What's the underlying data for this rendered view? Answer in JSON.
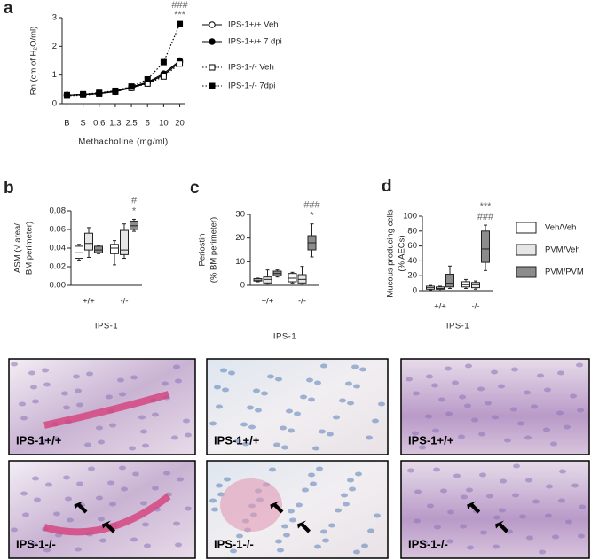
{
  "chart_data": [
    {
      "type": "line",
      "panel": "a",
      "y_label": "Rn (cm of H₂O/ml)",
      "x_label": "Methacholine (mg/ml)",
      "categories": [
        "B",
        "S",
        "0.6",
        "1.3",
        "2.5",
        "5",
        "10",
        "20"
      ],
      "ylim": [
        0,
        3
      ],
      "yticks": [
        0,
        1,
        2,
        3
      ],
      "annotations": [
        "###",
        "***"
      ],
      "series": [
        {
          "name": "IPS-1+/+ Veh",
          "color": "#000000",
          "marker": "open-circle",
          "dash": "solid",
          "values": [
            0.3,
            0.32,
            0.35,
            0.42,
            0.55,
            0.72,
            1.0,
            1.45
          ]
        },
        {
          "name": "IPS-1+/+ 7 dpi",
          "color": "#000000",
          "marker": "filled-circle",
          "dash": "solid",
          "values": [
            0.3,
            0.32,
            0.36,
            0.44,
            0.58,
            0.75,
            1.05,
            1.5
          ]
        },
        {
          "name": "IPS-1-/- Veh",
          "color": "#000000",
          "marker": "open-square",
          "dash": "dotted",
          "values": [
            0.28,
            0.3,
            0.35,
            0.42,
            0.55,
            0.7,
            0.95,
            1.4
          ]
        },
        {
          "name": "IPS-1-/- 7dpi",
          "color": "#000000",
          "marker": "filled-square",
          "dash": "dotted",
          "values": [
            0.3,
            0.33,
            0.38,
            0.45,
            0.6,
            0.85,
            1.45,
            2.78
          ]
        }
      ]
    },
    {
      "type": "box",
      "panel": "b",
      "y_label": [
        "ASM (√ area/",
        "BM perimeter)"
      ],
      "x_label": "IPS-1",
      "categories": [
        "+/+",
        "-/-"
      ],
      "ylim": [
        0,
        0.08
      ],
      "yticks": [
        {
          "value": 0,
          "label": "0.00"
        },
        {
          "value": 0.02,
          "label": "0.02"
        },
        {
          "value": 0.04,
          "label": "0.04"
        },
        {
          "value": 0.06,
          "label": "0.06"
        },
        {
          "value": 0.08,
          "label": "0.08"
        }
      ],
      "annotations": [
        "#",
        "*"
      ],
      "series": [
        {
          "color": "#ffffff",
          "min": [
            0.027,
            0.022
          ],
          "q1": [
            0.029,
            0.034
          ],
          "median": [
            0.035,
            0.04
          ],
          "q3": [
            0.042,
            0.044
          ],
          "max": [
            0.044,
            0.048
          ]
        },
        {
          "color": "#e6e6e6",
          "min": [
            0.03,
            0.029
          ],
          "q1": [
            0.038,
            0.033
          ],
          "median": [
            0.045,
            0.038
          ],
          "q3": [
            0.056,
            0.059
          ],
          "max": [
            0.062,
            0.066
          ]
        },
        {
          "color": "#8c8c8c",
          "min": [
            0.034,
            0.058
          ],
          "q1": [
            0.035,
            0.06
          ],
          "median": [
            0.038,
            0.064
          ],
          "q3": [
            0.042,
            0.069
          ],
          "max": [
            0.043,
            0.071
          ]
        }
      ]
    },
    {
      "type": "box",
      "panel": "c",
      "y_label": [
        "Periostin",
        "(% BM perimeter)"
      ],
      "x_label": "IPS-1",
      "categories": [
        "+/+",
        "-/-"
      ],
      "ylim": [
        0,
        30
      ],
      "yticks": [
        0,
        10,
        20,
        30
      ],
      "annotations": [
        "###",
        "*"
      ],
      "series": [
        {
          "color": "#ffffff",
          "min": [
            1.5,
            1
          ],
          "q1": [
            1.8,
            1.5
          ],
          "median": [
            2.2,
            3
          ],
          "q3": [
            2.8,
            5
          ],
          "max": [
            3,
            5.5
          ]
        },
        {
          "color": "#e6e6e6",
          "min": [
            0.5,
            0.5
          ],
          "q1": [
            1,
            1
          ],
          "median": [
            2.5,
            2.5
          ],
          "q3": [
            3.5,
            4.5
          ],
          "max": [
            6.5,
            8
          ]
        },
        {
          "color": "#8c8c8c",
          "min": [
            3.5,
            12
          ],
          "q1": [
            4,
            15
          ],
          "median": [
            5,
            18
          ],
          "q3": [
            6,
            21
          ],
          "max": [
            6.5,
            26
          ]
        }
      ]
    },
    {
      "type": "box",
      "panel": "d",
      "y_label": [
        "Mucous producing cells",
        "(% AECs)"
      ],
      "x_label": "IPS-1",
      "categories": [
        "+/+",
        "-/-"
      ],
      "ylim": [
        0,
        100
      ],
      "yticks": [
        0,
        20,
        40,
        60,
        80,
        100
      ],
      "annotations": [
        "***",
        "###"
      ],
      "series": [
        {
          "name": "Veh/Veh",
          "color": "#ffffff",
          "min": [
            1,
            3
          ],
          "q1": [
            2,
            5
          ],
          "median": [
            4,
            8
          ],
          "q3": [
            6,
            12
          ],
          "max": [
            7,
            15
          ]
        },
        {
          "name": "PVM/Veh",
          "color": "#e6e6e6",
          "min": [
            0,
            2
          ],
          "q1": [
            2,
            4
          ],
          "median": [
            3,
            8
          ],
          "q3": [
            5,
            11
          ],
          "max": [
            6,
            13
          ]
        },
        {
          "name": "PVM/PVM",
          "color": "#8c8c8c",
          "min": [
            3,
            27
          ],
          "q1": [
            5,
            38
          ],
          "median": [
            10,
            56
          ],
          "q3": [
            22,
            80
          ],
          "max": [
            33,
            88
          ]
        }
      ]
    }
  ],
  "images": [
    {
      "label": "IPS-1+/+"
    },
    {
      "label": "IPS-1+/+"
    },
    {
      "label": "IPS-1+/+"
    },
    {
      "label": "IPS-1-/-"
    },
    {
      "label": "IPS-1-/-"
    },
    {
      "label": "IPS-1-/-"
    }
  ]
}
